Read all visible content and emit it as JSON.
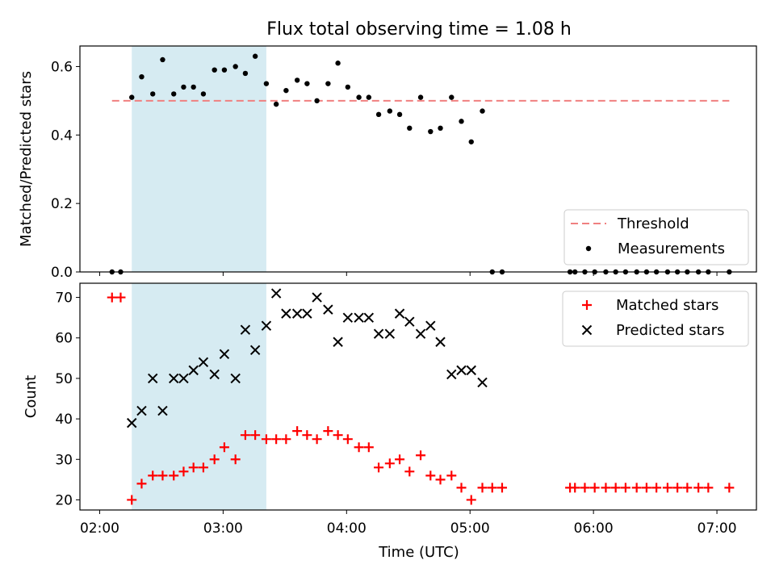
{
  "title": "Flux total observing time = 1.08 h",
  "xlabel": "Time (UTC)",
  "xticks": [
    {
      "label": "02:00",
      "value": 2.0
    },
    {
      "label": "03:00",
      "value": 3.0
    },
    {
      "label": "04:00",
      "value": 4.0
    },
    {
      "label": "05:00",
      "value": 5.0
    },
    {
      "label": "06:00",
      "value": 6.0
    },
    {
      "label": "07:00",
      "value": 7.0
    }
  ],
  "xlim": [
    1.84,
    7.32
  ],
  "shaded_interval": [
    2.26,
    3.35
  ],
  "colors": {
    "threshold": "#f08080",
    "measurements": "#000000",
    "matched": "#ff0000",
    "predicted": "#000000",
    "shade": "#add8e6"
  },
  "chart_data": [
    {
      "type": "scatter",
      "title": "Flux total observing time = 1.08 h",
      "ylabel": "Matched/Predicted stars",
      "ylim": [
        0.0,
        0.66
      ],
      "yticks": [
        "0.0",
        "0.2",
        "0.4",
        "0.6"
      ],
      "yticks_values": [
        0.0,
        0.2,
        0.4,
        0.6
      ],
      "legend": {
        "position": "lower-right",
        "entries": [
          "Threshold",
          "Measurements"
        ]
      },
      "threshold": {
        "name": "Threshold",
        "value": 0.5,
        "x_range": [
          2.1,
          7.1
        ]
      },
      "series": [
        {
          "name": "Measurements",
          "x": [
            2.1,
            2.17,
            2.26,
            2.34,
            2.43,
            2.51,
            2.6,
            2.68,
            2.76,
            2.84,
            2.93,
            3.01,
            3.1,
            3.18,
            3.26,
            3.35,
            3.43,
            3.51,
            3.6,
            3.68,
            3.76,
            3.85,
            3.93,
            4.01,
            4.1,
            4.18,
            4.26,
            4.35,
            4.43,
            4.51,
            4.6,
            4.68,
            4.76,
            4.85,
            4.93,
            5.01,
            5.1,
            5.18,
            5.26,
            5.81,
            5.85,
            5.93,
            6.01,
            6.1,
            6.18,
            6.26,
            6.35,
            6.43,
            6.51,
            6.6,
            6.68,
            6.76,
            6.85,
            6.93,
            7.1
          ],
          "y": [
            0.0,
            0.0,
            0.51,
            0.57,
            0.52,
            0.62,
            0.52,
            0.54,
            0.54,
            0.52,
            0.59,
            0.59,
            0.6,
            0.58,
            0.63,
            0.55,
            0.49,
            0.53,
            0.56,
            0.55,
            0.5,
            0.55,
            0.61,
            0.54,
            0.51,
            0.51,
            0.46,
            0.47,
            0.46,
            0.42,
            0.51,
            0.41,
            0.42,
            0.51,
            0.44,
            0.38,
            0.47,
            0.0,
            0.0,
            0.0,
            0.0,
            0.0,
            0.0,
            0.0,
            0.0,
            0.0,
            0.0,
            0.0,
            0.0,
            0.0,
            0.0,
            0.0,
            0.0,
            0.0,
            0.0
          ]
        }
      ]
    },
    {
      "type": "scatter",
      "ylabel": "Count",
      "ylim": [
        17.5,
        73.5
      ],
      "yticks": [
        "20",
        "30",
        "40",
        "50",
        "60",
        "70"
      ],
      "yticks_values": [
        20,
        30,
        40,
        50,
        60,
        70
      ],
      "legend": {
        "position": "upper-right",
        "entries": [
          "Matched stars",
          "Predicted stars"
        ]
      },
      "series": [
        {
          "name": "Matched stars",
          "marker": "plus",
          "x": [
            2.1,
            2.17,
            2.26,
            2.34,
            2.43,
            2.51,
            2.6,
            2.68,
            2.76,
            2.84,
            2.93,
            3.01,
            3.1,
            3.18,
            3.26,
            3.35,
            3.43,
            3.51,
            3.6,
            3.68,
            3.76,
            3.85,
            3.93,
            4.01,
            4.1,
            4.18,
            4.26,
            4.35,
            4.43,
            4.51,
            4.6,
            4.68,
            4.76,
            4.85,
            4.93,
            5.01,
            5.1,
            5.18,
            5.26,
            5.81,
            5.85,
            5.93,
            6.01,
            6.1,
            6.18,
            6.26,
            6.35,
            6.43,
            6.51,
            6.6,
            6.68,
            6.76,
            6.85,
            6.93,
            7.1
          ],
          "y": [
            70,
            70,
            20,
            24,
            26,
            26,
            26,
            27,
            28,
            28,
            30,
            33,
            30,
            36,
            36,
            35,
            35,
            35,
            37,
            36,
            35,
            37,
            36,
            35,
            33,
            33,
            28,
            29,
            30,
            27,
            31,
            26,
            25,
            26,
            23,
            20,
            23,
            23,
            23,
            23,
            23,
            23,
            23,
            23,
            23,
            23,
            23,
            23,
            23,
            23,
            23,
            23,
            23,
            23,
            23
          ]
        },
        {
          "name": "Predicted stars",
          "marker": "x",
          "x": [
            2.26,
            2.34,
            2.43,
            2.51,
            2.6,
            2.68,
            2.76,
            2.84,
            2.93,
            3.01,
            3.1,
            3.18,
            3.26,
            3.35,
            3.43,
            3.51,
            3.6,
            3.68,
            3.76,
            3.85,
            3.93,
            4.01,
            4.1,
            4.18,
            4.26,
            4.35,
            4.43,
            4.51,
            4.6,
            4.68,
            4.76,
            4.85,
            4.93,
            5.01,
            5.1
          ],
          "y": [
            39,
            42,
            50,
            42,
            50,
            50,
            52,
            54,
            51,
            56,
            50,
            62,
            57,
            63,
            71,
            66,
            66,
            66,
            70,
            67,
            59,
            65,
            65,
            65,
            61,
            61,
            66,
            64,
            61,
            63,
            59,
            51,
            52,
            52,
            49
          ]
        }
      ]
    }
  ]
}
